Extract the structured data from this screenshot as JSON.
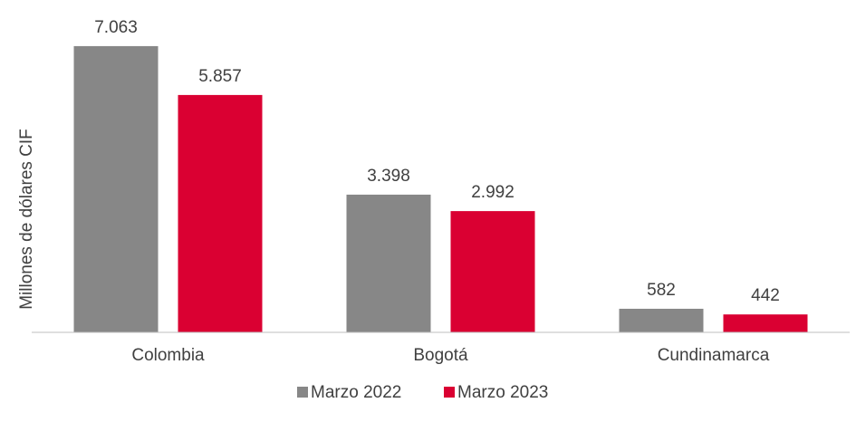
{
  "chart_data": {
    "type": "bar",
    "y_label": "Millones de dólares CIF",
    "categories": [
      "Colombia",
      "Bogotá",
      "Cundinamarca"
    ],
    "series": [
      {
        "name": "Marzo 2022",
        "color": "#878787",
        "values": [
          7063,
          3398,
          582
        ],
        "value_labels": [
          "7.063",
          "3.398",
          "582"
        ]
      },
      {
        "name": "Marzo 2023",
        "color": "#da0032",
        "values": [
          5857,
          2992,
          442
        ],
        "value_labels": [
          "5.857",
          "2.992",
          "442"
        ]
      }
    ],
    "ylim": [
      0,
      8000
    ],
    "legend": "bottom"
  }
}
